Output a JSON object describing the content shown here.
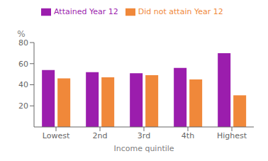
{
  "chart_data": {
    "type": "bar",
    "xlabel": "Income quintile",
    "ylabel": "%",
    "categories": [
      "Lowest",
      "2nd",
      "3rd",
      "4th",
      "Highest"
    ],
    "series": [
      {
        "name": "Attained Year 12",
        "color": "#9B1DAD",
        "values": [
          54,
          52,
          51,
          56,
          70
        ]
      },
      {
        "name": "Did not attain Year 12",
        "color": "#F0883A",
        "values": [
          46,
          47,
          49,
          45,
          30
        ]
      }
    ],
    "ylim": [
      0,
      80
    ],
    "yticks": [
      20,
      40,
      60,
      80
    ],
    "grid": false,
    "legend": "upper left"
  }
}
